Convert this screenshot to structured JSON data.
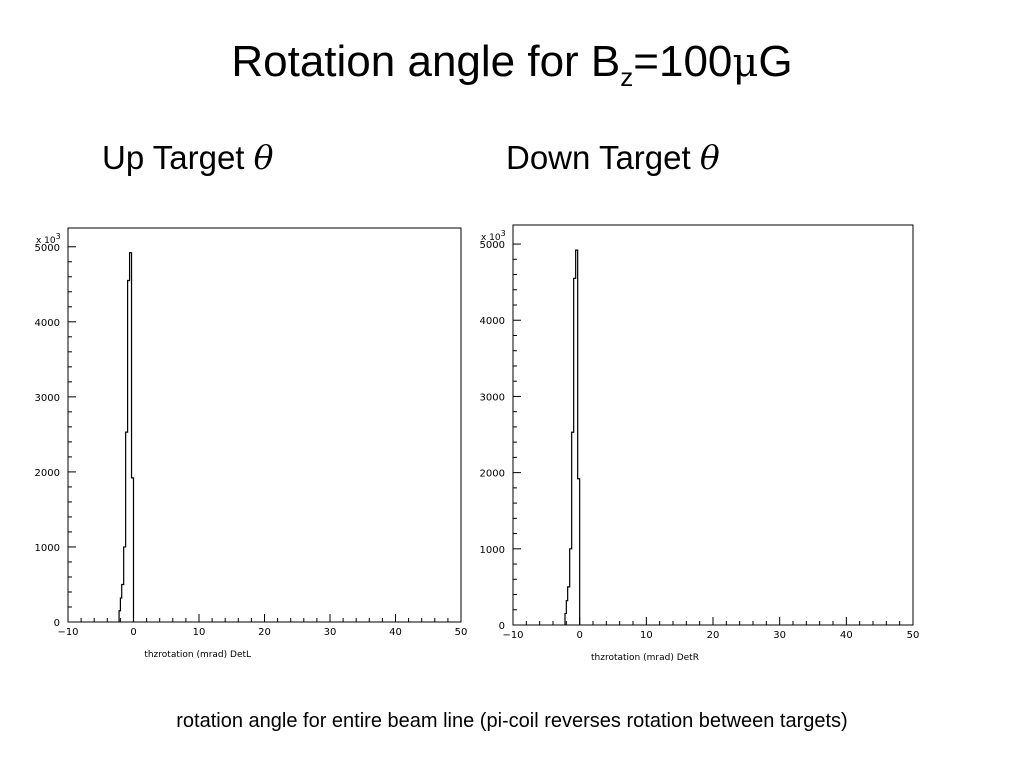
{
  "title": {
    "prefix": "Rotation angle for B",
    "subscript": "z",
    "value": "=100",
    "mu": "μ",
    "unit": "G"
  },
  "labels": {
    "left": {
      "text": "Up Target ",
      "symbol": "θ"
    },
    "right": {
      "text": "Down Target ",
      "symbol": "θ"
    }
  },
  "caption": "rotation angle for entire beam line (pi-coil reverses rotation between targets)",
  "chart_data": [
    {
      "type": "histogram",
      "xlabel": "thzrotation (mrad) DetL",
      "ylabel": "",
      "y_multiplier": "x 10",
      "y_multiplier_exp": "3",
      "xlim": [
        -10,
        50
      ],
      "ylim": [
        0,
        5250
      ],
      "x_ticks": [
        "-10",
        "0",
        "10",
        "20",
        "30",
        "40",
        "50"
      ],
      "y_ticks": [
        "0",
        "1000",
        "2000",
        "3000",
        "4000",
        "5000"
      ],
      "bins": [
        {
          "x0": -2.2,
          "x1": -2.0,
          "value": 150
        },
        {
          "x0": -2.0,
          "x1": -1.8,
          "value": 320
        },
        {
          "x0": -1.8,
          "x1": -1.5,
          "value": 500
        },
        {
          "x0": -1.5,
          "x1": -1.2,
          "value": 1000
        },
        {
          "x0": -1.2,
          "x1": -0.9,
          "value": 2530
        },
        {
          "x0": -0.9,
          "x1": -0.6,
          "value": 4550
        },
        {
          "x0": -0.6,
          "x1": -0.3,
          "value": 4920
        },
        {
          "x0": -0.3,
          "x1": 0.0,
          "value": 1920
        }
      ]
    },
    {
      "type": "histogram",
      "xlabel": "thzrotation (mrad) DetR",
      "ylabel": "",
      "y_multiplier": "x 10",
      "y_multiplier_exp": "3",
      "xlim": [
        -10,
        50
      ],
      "ylim": [
        0,
        5250
      ],
      "x_ticks": [
        "-10",
        "0",
        "10",
        "20",
        "30",
        "40",
        "50"
      ],
      "y_ticks": [
        "0",
        "1000",
        "2000",
        "3000",
        "4000",
        "5000"
      ],
      "bins": [
        {
          "x0": -2.2,
          "x1": -2.0,
          "value": 150
        },
        {
          "x0": -2.0,
          "x1": -1.8,
          "value": 320
        },
        {
          "x0": -1.8,
          "x1": -1.5,
          "value": 500
        },
        {
          "x0": -1.5,
          "x1": -1.2,
          "value": 1000
        },
        {
          "x0": -1.2,
          "x1": -0.9,
          "value": 2530
        },
        {
          "x0": -0.9,
          "x1": -0.6,
          "value": 4550
        },
        {
          "x0": -0.6,
          "x1": -0.3,
          "value": 4920
        },
        {
          "x0": -0.3,
          "x1": 0.0,
          "value": 1920
        }
      ]
    }
  ]
}
